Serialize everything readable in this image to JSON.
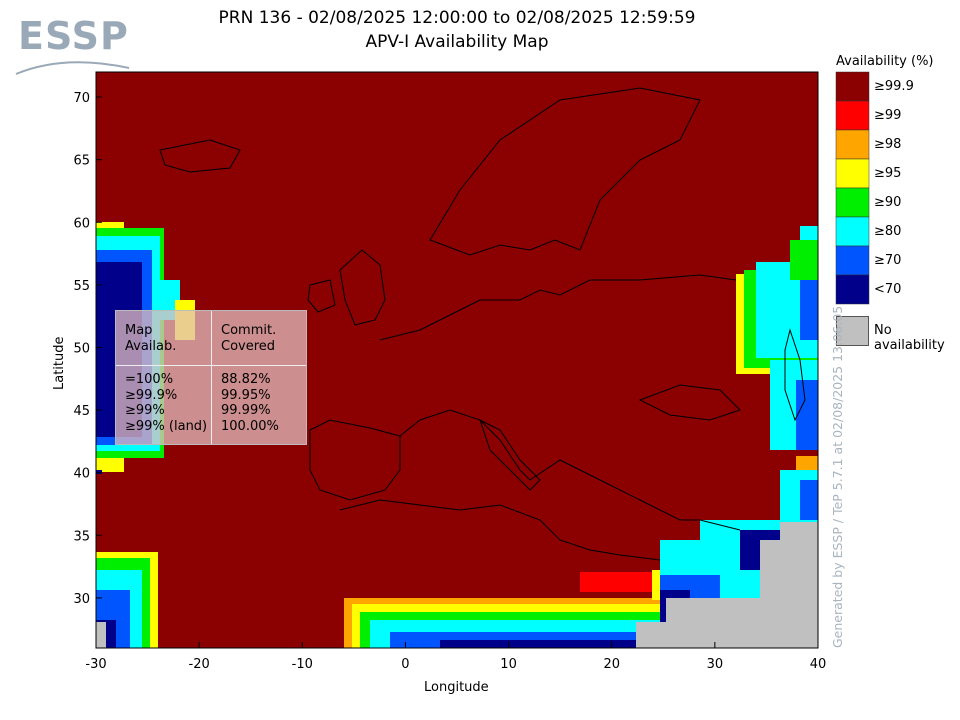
{
  "logo_text": "ESSP",
  "title_line1": "PRN 136 - 02/08/2025 12:00:00 to 02/08/2025 12:59:59",
  "title_line2": "APV-I Availability Map",
  "legend": {
    "title": "Availability (%)",
    "items": [
      {
        "label": "≥99.9",
        "color": "#8b0000"
      },
      {
        "label": "≥99",
        "color": "#ff0000"
      },
      {
        "label": "≥98",
        "color": "#ffa500"
      },
      {
        "label": "≥95",
        "color": "#ffff00"
      },
      {
        "label": "≥90",
        "color": "#00ee00"
      },
      {
        "label": "≥80",
        "color": "#00ffff"
      },
      {
        "label": "≥70",
        "color": "#0055ff"
      },
      {
        "label": "<70",
        "color": "#00008b"
      }
    ],
    "no_availability": {
      "label": "No availability",
      "color": "#c0c0c0"
    }
  },
  "generated_text": "Generated by ESSP / TeP 5.7.1 at 02/08/2025 13:06:05",
  "axes": {
    "xlabel": "Longitude",
    "ylabel": "Latitude",
    "x_ticks": [
      -30,
      -20,
      -10,
      0,
      10,
      20,
      30,
      40
    ],
    "y_ticks": [
      30,
      35,
      40,
      45,
      50,
      55,
      60,
      65,
      70
    ],
    "x_range": [
      -30,
      40
    ],
    "y_range": [
      26,
      72
    ]
  },
  "info_table": {
    "header_left": "Map\nAvailab.",
    "header_right": "Commit.\nCovered",
    "rows_left": "=100%\n≥99.9%\n≥99%\n≥99% (land)",
    "rows_right": "88.82%\n99.95%\n99.99%\n100.00%"
  }
}
